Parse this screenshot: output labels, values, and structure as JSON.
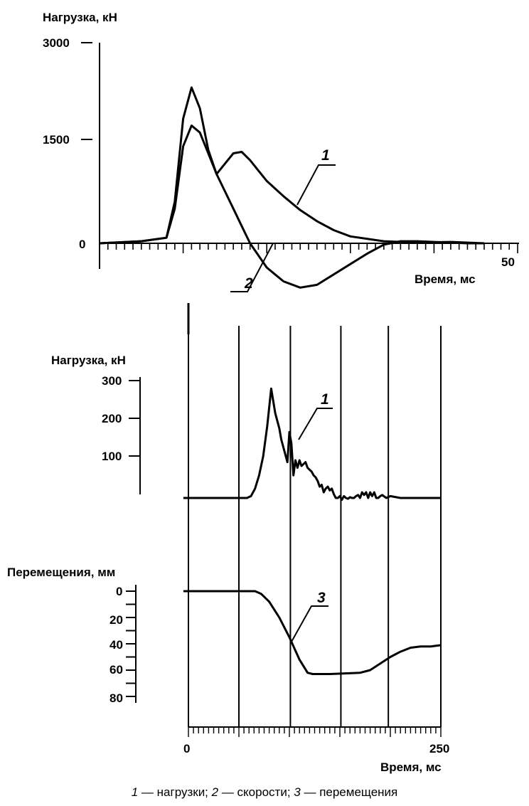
{
  "chart_data": [
    {
      "type": "line",
      "ylabel": "Нагрузка, кН",
      "xlabel": "Время, мс",
      "xlim": [
        0,
        50
      ],
      "ylim": [
        -600,
        3000
      ],
      "x_ticks": [
        "50"
      ],
      "y_ticks": [
        "0",
        "1500",
        "3000"
      ],
      "series": [
        {
          "name": "1",
          "x": [
            0,
            5,
            8,
            9,
            10,
            11,
            12,
            13,
            14,
            15,
            16,
            17,
            18,
            19,
            20,
            22,
            24,
            26,
            28,
            30,
            34,
            38,
            42,
            46
          ],
          "y": [
            0,
            30,
            80,
            600,
            1800,
            2250,
            1950,
            1350,
            1000,
            1150,
            1300,
            1320,
            1200,
            1050,
            900,
            680,
            480,
            320,
            190,
            100,
            30,
            10,
            20,
            0
          ]
        },
        {
          "name": "2",
          "x": [
            0,
            5,
            8,
            9,
            10,
            11,
            12,
            13,
            14,
            15,
            16,
            17,
            18,
            20,
            22,
            24,
            26,
            28,
            30,
            32,
            34,
            36,
            38,
            40,
            44,
            46
          ],
          "y": [
            0,
            30,
            80,
            500,
            1400,
            1700,
            1600,
            1300,
            1000,
            750,
            500,
            250,
            0,
            -350,
            -550,
            -640,
            -600,
            -450,
            -300,
            -150,
            -20,
            30,
            30,
            20,
            0,
            0
          ]
        }
      ]
    },
    {
      "type": "line",
      "ylabel": "Нагрузка, кН",
      "xlabel": "Время, мс",
      "xlim": [
        0,
        250
      ],
      "ylim": [
        0,
        330
      ],
      "x_ticks": [
        "0",
        "250"
      ],
      "y_ticks": [
        "100",
        "200",
        "300"
      ],
      "series": [
        {
          "name": "1",
          "x": [
            -5,
            0,
            20,
            50,
            58,
            62,
            66,
            70,
            74,
            78,
            80,
            82,
            86,
            90,
            92,
            96,
            98,
            100,
            102,
            104,
            106,
            108,
            110,
            112,
            114,
            116,
            118,
            120,
            122,
            124,
            126,
            128,
            130,
            132,
            134,
            136,
            138,
            140,
            142,
            144,
            146,
            148,
            150,
            152,
            154,
            156,
            158,
            160,
            162,
            164,
            166,
            168,
            170,
            172,
            174,
            176,
            178,
            180,
            182,
            184,
            186,
            188,
            190,
            192,
            196,
            200,
            210,
            220,
            230,
            240,
            250
          ],
          "y": [
            0,
            0,
            0,
            0,
            0,
            5,
            25,
            60,
            110,
            190,
            240,
            290,
            225,
            185,
            155,
            115,
            95,
            175,
            145,
            60,
            100,
            80,
            100,
            85,
            90,
            95,
            80,
            75,
            70,
            60,
            55,
            45,
            30,
            35,
            15,
            25,
            30,
            20,
            25,
            10,
            0,
            0,
            5,
            -5,
            5,
            0,
            -2,
            2,
            0,
            0,
            5,
            8,
            0,
            15,
            8,
            15,
            0,
            15,
            5,
            15,
            0,
            0,
            5,
            8,
            0,
            5,
            0,
            0,
            0,
            0,
            0
          ]
        }
      ]
    },
    {
      "type": "line",
      "ylabel": "Перемещения, мм",
      "xlabel": "Время, мс",
      "xlim": [
        0,
        250
      ],
      "ylim": [
        0,
        90
      ],
      "x_ticks": [
        "0",
        "250"
      ],
      "y_ticks": [
        "0",
        "20",
        "40",
        "60",
        "80"
      ],
      "series": [
        {
          "name": "3",
          "x": [
            -5,
            0,
            30,
            60,
            66,
            72,
            80,
            90,
            100,
            110,
            118,
            123,
            130,
            140,
            170,
            180,
            190,
            200,
            210,
            220,
            230,
            240,
            250
          ],
          "y": [
            0,
            0,
            0,
            0,
            0,
            2,
            8,
            20,
            35,
            52,
            62,
            63,
            63,
            63,
            62,
            60,
            55,
            50,
            46,
            43,
            42,
            42,
            41
          ]
        }
      ]
    }
  ],
  "labels": {
    "top_ylabel": "Нагрузка, кН",
    "top_y3000": "3000",
    "top_y1500": "1500",
    "top_y0": "0",
    "top_x50": "50",
    "top_xlabel": "Время, мс",
    "top_curve1": "1",
    "top_curve2": "2",
    "mid_ylabel": "Нагрузка, кН",
    "mid_y300": "300",
    "mid_y200": "200",
    "mid_y100": "100",
    "mid_curve1": "1",
    "bot_ylabel": "Перемещения, мм",
    "bot_y0": "0",
    "bot_y20": "20",
    "bot_y40": "40",
    "bot_y60": "60",
    "bot_y80": "80",
    "bot_curve3": "3",
    "bot_x0": "0",
    "bot_x250": "250",
    "bot_xlabel": "Время, мс"
  },
  "caption": {
    "n1": "1",
    "t1": " — нагрузки; ",
    "n2": "2",
    "t2": " — скорости; ",
    "n3": "3",
    "t3": " — перемещения"
  }
}
